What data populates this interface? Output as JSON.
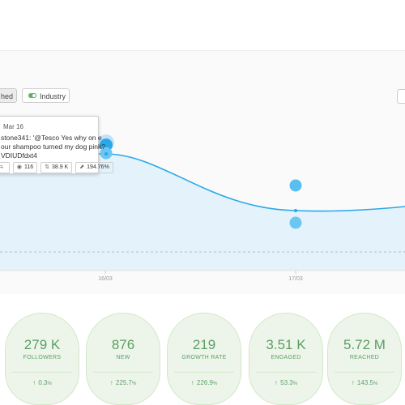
{
  "toolbar": {
    "left_toggle_label": "hed",
    "industry_toggle_label": "Industry"
  },
  "chart": {
    "x_tick_labels": [
      "16/03",
      "17/03"
    ],
    "line_color": "#2aa7e8",
    "fill_color": "#e3f2fb"
  },
  "tooltip": {
    "date": "Mar 16",
    "line1": "stone341: '@Tesco Yes why on e",
    "line2": "our shampoo turned my dog pink?",
    "line3": "VDIUDfdxt4",
    "stats": [
      {
        "icon": "retweet-icon",
        "glyph": "⇆",
        "value": ""
      },
      {
        "icon": "views-icon",
        "glyph": "◉",
        "value": "116"
      },
      {
        "icon": "reach-icon",
        "glyph": "⇅",
        "value": "38.9 K"
      },
      {
        "icon": "growth-icon",
        "glyph": "⬈",
        "value": "194.76%"
      }
    ]
  },
  "stats": [
    {
      "value": "279 K",
      "label": "FOLLOWERS",
      "change": "0.3",
      "unit": "%"
    },
    {
      "value": "876",
      "label": "NEW",
      "change": "225.7",
      "unit": "%"
    },
    {
      "value": "219",
      "label": "GROWTH RATE",
      "change": "226.9",
      "unit": "%"
    },
    {
      "value": "3.51 K",
      "label": "ENGAGED",
      "change": "53.3",
      "unit": "%"
    },
    {
      "value": "5.72 M",
      "label": "REACHED",
      "change": "143.5",
      "unit": "%"
    }
  ]
}
